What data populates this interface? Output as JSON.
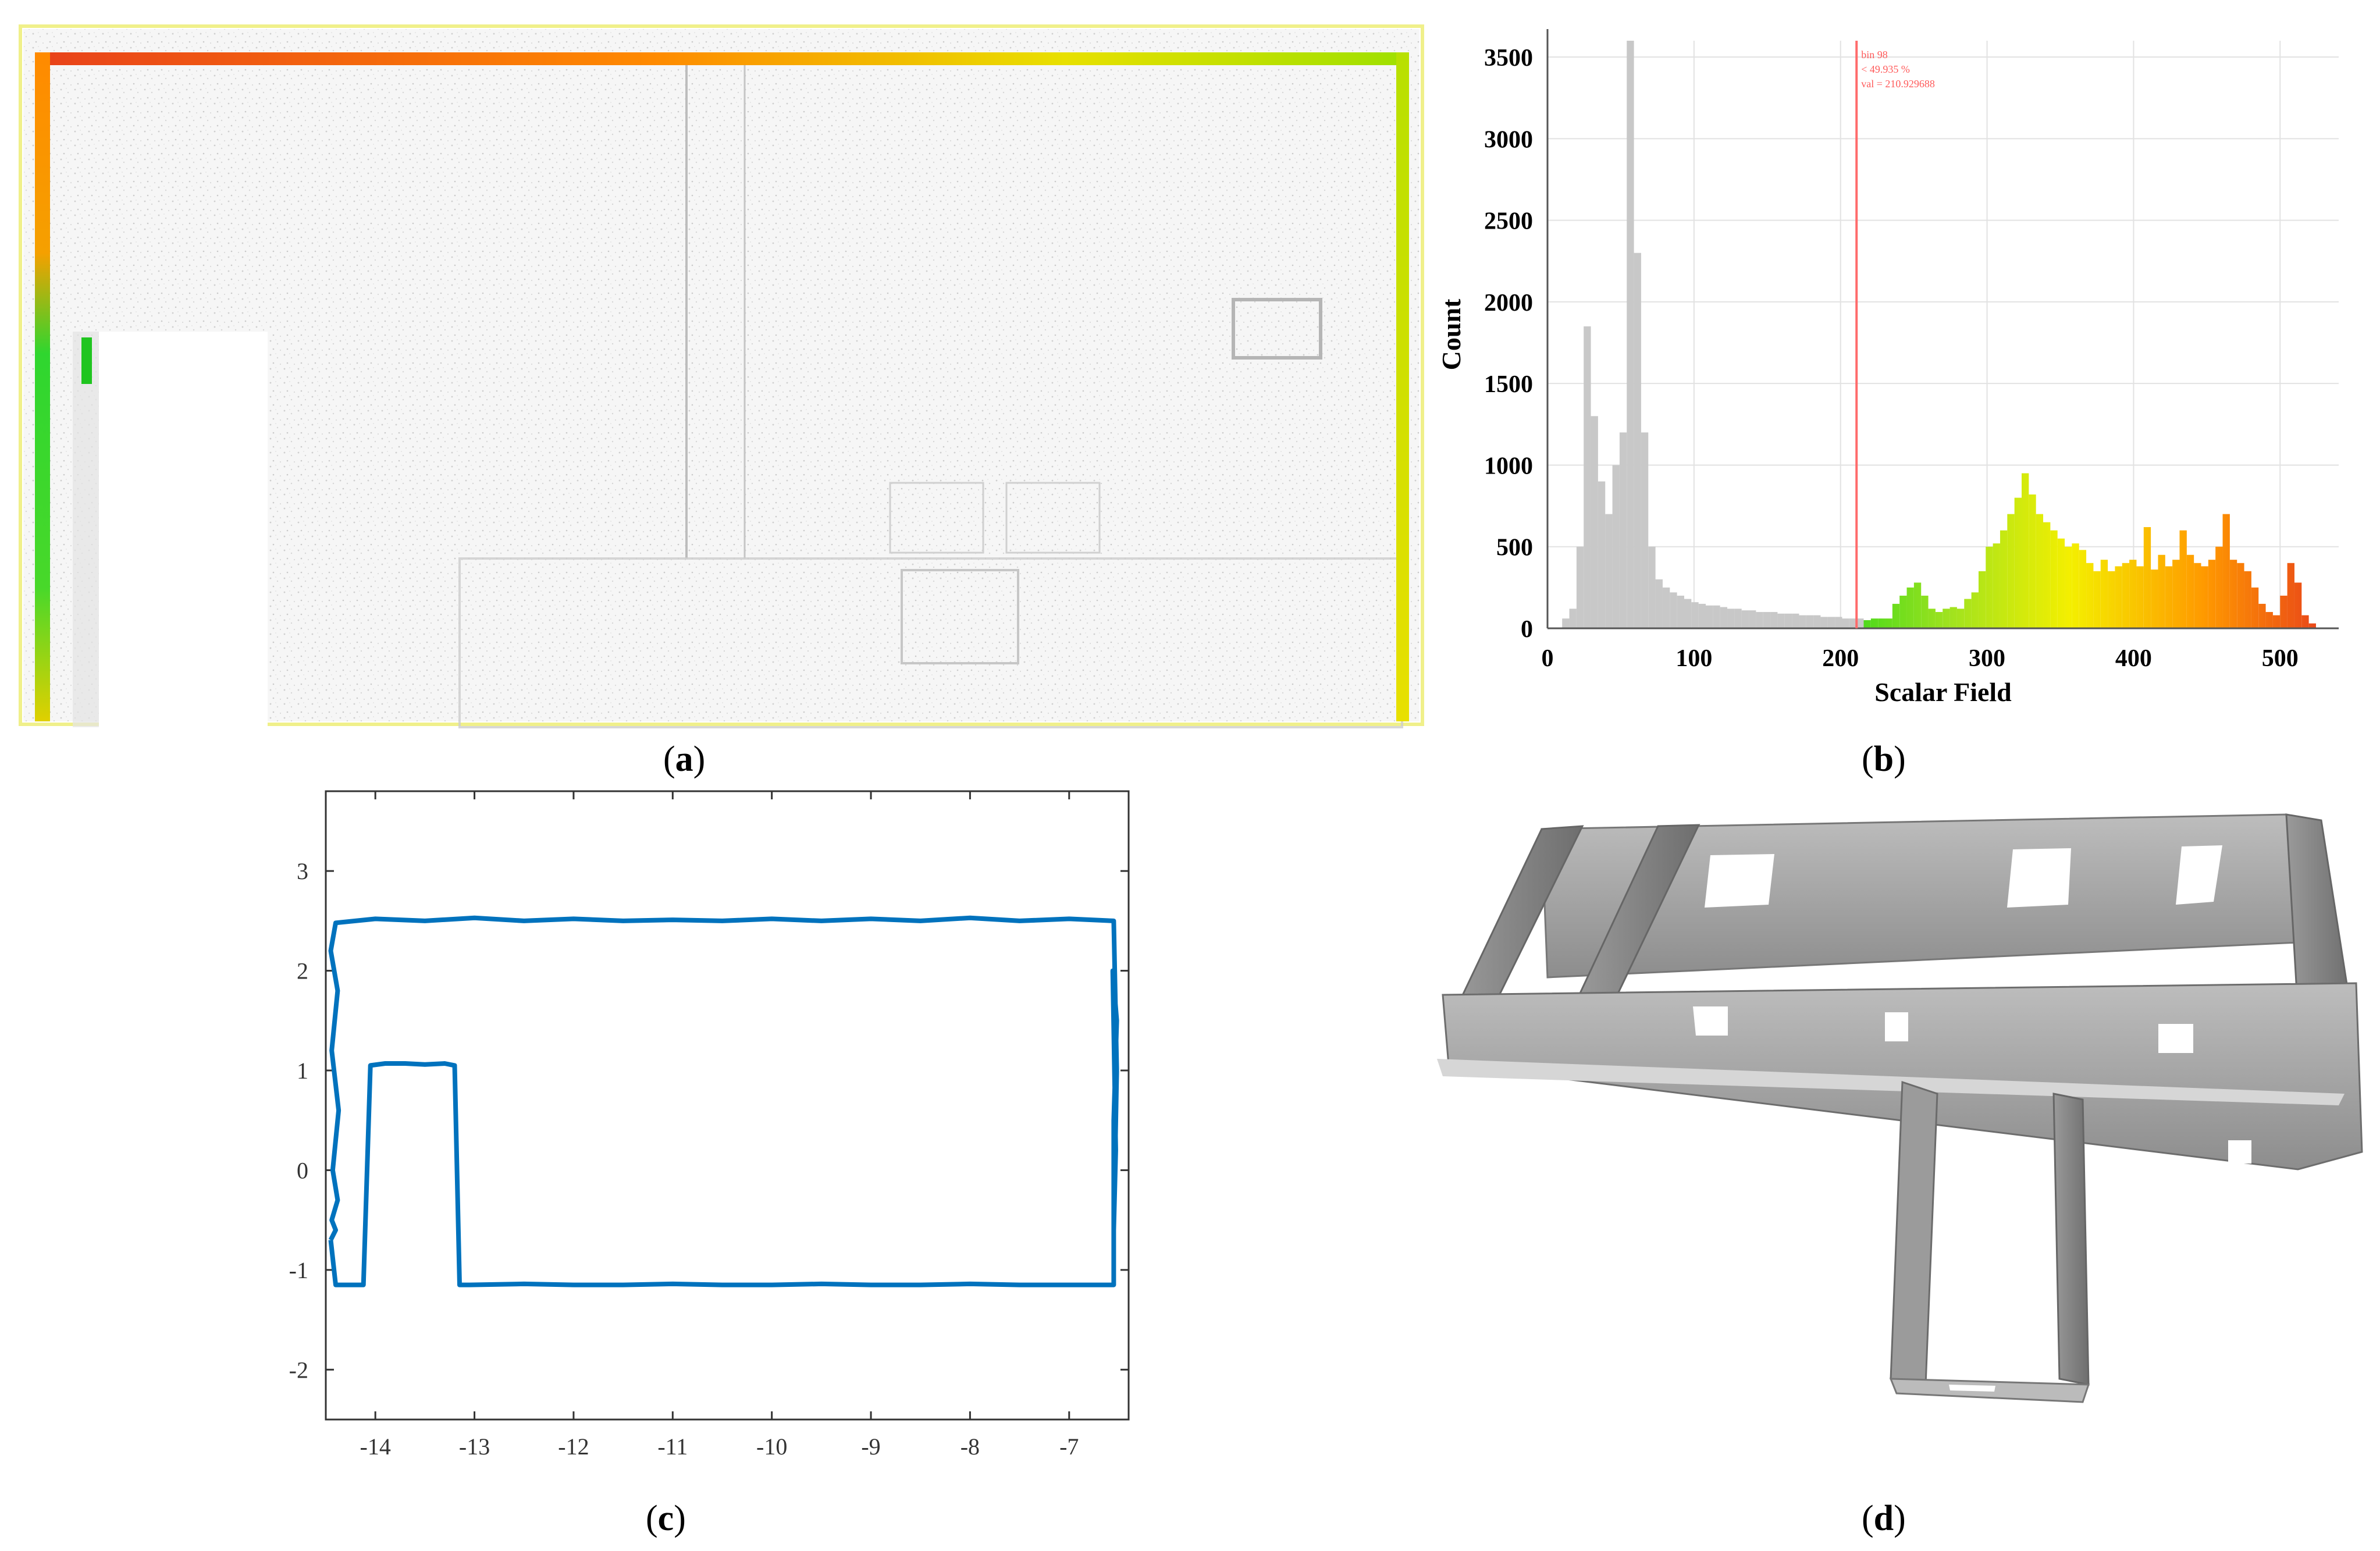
{
  "captions": {
    "a": {
      "open": "(",
      "letter": "a",
      "close": ")"
    },
    "b": {
      "open": "(",
      "letter": "b",
      "close": ")"
    },
    "c": {
      "open": "(",
      "letter": "c",
      "close": ")"
    },
    "d": {
      "open": "(",
      "letter": "d",
      "close": ")"
    }
  },
  "histogram_marker": {
    "line1": "bin 98",
    "line2": "< 49.935 %",
    "line3": "val = 210.929688"
  },
  "colors": {
    "histogram_gray": "#c8c8c8",
    "marker_red": "#ff6b6b",
    "outline_blue": "#0072bd",
    "green": "#19d419",
    "yellow": "#ffff00",
    "orange": "#ff8a00",
    "red": "#e8411a"
  },
  "chart_data": [
    {
      "panel": "b",
      "type": "bar",
      "xlabel": "Scalar Field",
      "ylabel": "Count",
      "xlim": [
        0,
        540
      ],
      "ylim": [
        0,
        3600
      ],
      "xticks": [
        0,
        100,
        200,
        300,
        400,
        500
      ],
      "yticks": [
        0,
        500,
        1000,
        1500,
        2000,
        2500,
        3000,
        3500
      ],
      "marker_x": 210.93,
      "grid": true,
      "x_start": 10,
      "bin_width": 4.9,
      "values": [
        60,
        120,
        500,
        1850,
        1300,
        900,
        700,
        1000,
        1200,
        3600,
        2300,
        1200,
        500,
        300,
        250,
        220,
        200,
        180,
        160,
        150,
        140,
        140,
        130,
        120,
        120,
        110,
        110,
        100,
        100,
        100,
        90,
        90,
        90,
        80,
        80,
        80,
        70,
        70,
        70,
        60,
        60,
        60,
        50,
        60,
        60,
        60,
        150,
        200,
        250,
        280,
        200,
        120,
        100,
        120,
        130,
        120,
        180,
        220,
        350,
        500,
        520,
        600,
        700,
        800,
        950,
        820,
        700,
        650,
        600,
        550,
        500,
        520,
        480,
        400,
        350,
        420,
        350,
        380,
        400,
        420,
        380,
        620,
        360,
        450,
        380,
        420,
        600,
        450,
        400,
        380,
        420,
        500,
        700,
        420,
        400,
        350,
        250,
        150,
        100,
        80,
        200,
        400,
        280,
        80,
        30
      ]
    },
    {
      "panel": "c",
      "type": "line",
      "xlim": [
        -14.5,
        -6.4
      ],
      "ylim": [
        -2.5,
        3.8
      ],
      "xticks": [
        -14,
        -13,
        -12,
        -11,
        -10,
        -9,
        -8,
        -7
      ],
      "yticks": [
        -2,
        -1,
        0,
        1,
        2,
        3
      ],
      "series": [
        {
          "x": [
            -14.45,
            -14.4,
            -14.3,
            -14.2,
            -14.12,
            -14.05,
            -13.9,
            -13.7,
            -13.5,
            -13.3,
            -13.2,
            -13.15,
            -13.05,
            -12.5,
            -12,
            -11.5,
            -11,
            -10.5,
            -10,
            -9.5,
            -9,
            -8.5,
            -8,
            -7.5,
            -7,
            -6.55,
            -6.55,
            -6.52,
            -6.56,
            -6.53,
            -6.55,
            -6.52,
            -6.55,
            -7,
            -7.5,
            -8,
            -8.5,
            -9,
            -9.5,
            -10,
            -10.5,
            -11,
            -11.5,
            -12,
            -12.5,
            -13,
            -13.5,
            -14,
            -14.4,
            -14.45,
            -14.38,
            -14.44,
            -14.37,
            -14.43,
            -14.38,
            -14.44,
            -14.4,
            -14.45
          ],
          "y": [
            -0.7,
            -1.15,
            -1.15,
            -1.15,
            -1.15,
            1.05,
            1.07,
            1.07,
            1.06,
            1.07,
            1.05,
            -1.15,
            -1.15,
            -1.14,
            -1.15,
            -1.15,
            -1.14,
            -1.15,
            -1.15,
            -1.14,
            -1.15,
            -1.15,
            -1.14,
            -1.15,
            -1.15,
            -1.15,
            0.5,
            1.5,
            2.0,
            0.2,
            -0.6,
            1.0,
            2.5,
            2.52,
            2.5,
            2.53,
            2.5,
            2.52,
            2.5,
            2.52,
            2.5,
            2.51,
            2.5,
            2.52,
            2.5,
            2.53,
            2.5,
            2.52,
            2.48,
            2.2,
            1.8,
            1.2,
            0.6,
            0.0,
            -0.3,
            -0.5,
            -0.6,
            -0.7
          ]
        }
      ]
    }
  ]
}
